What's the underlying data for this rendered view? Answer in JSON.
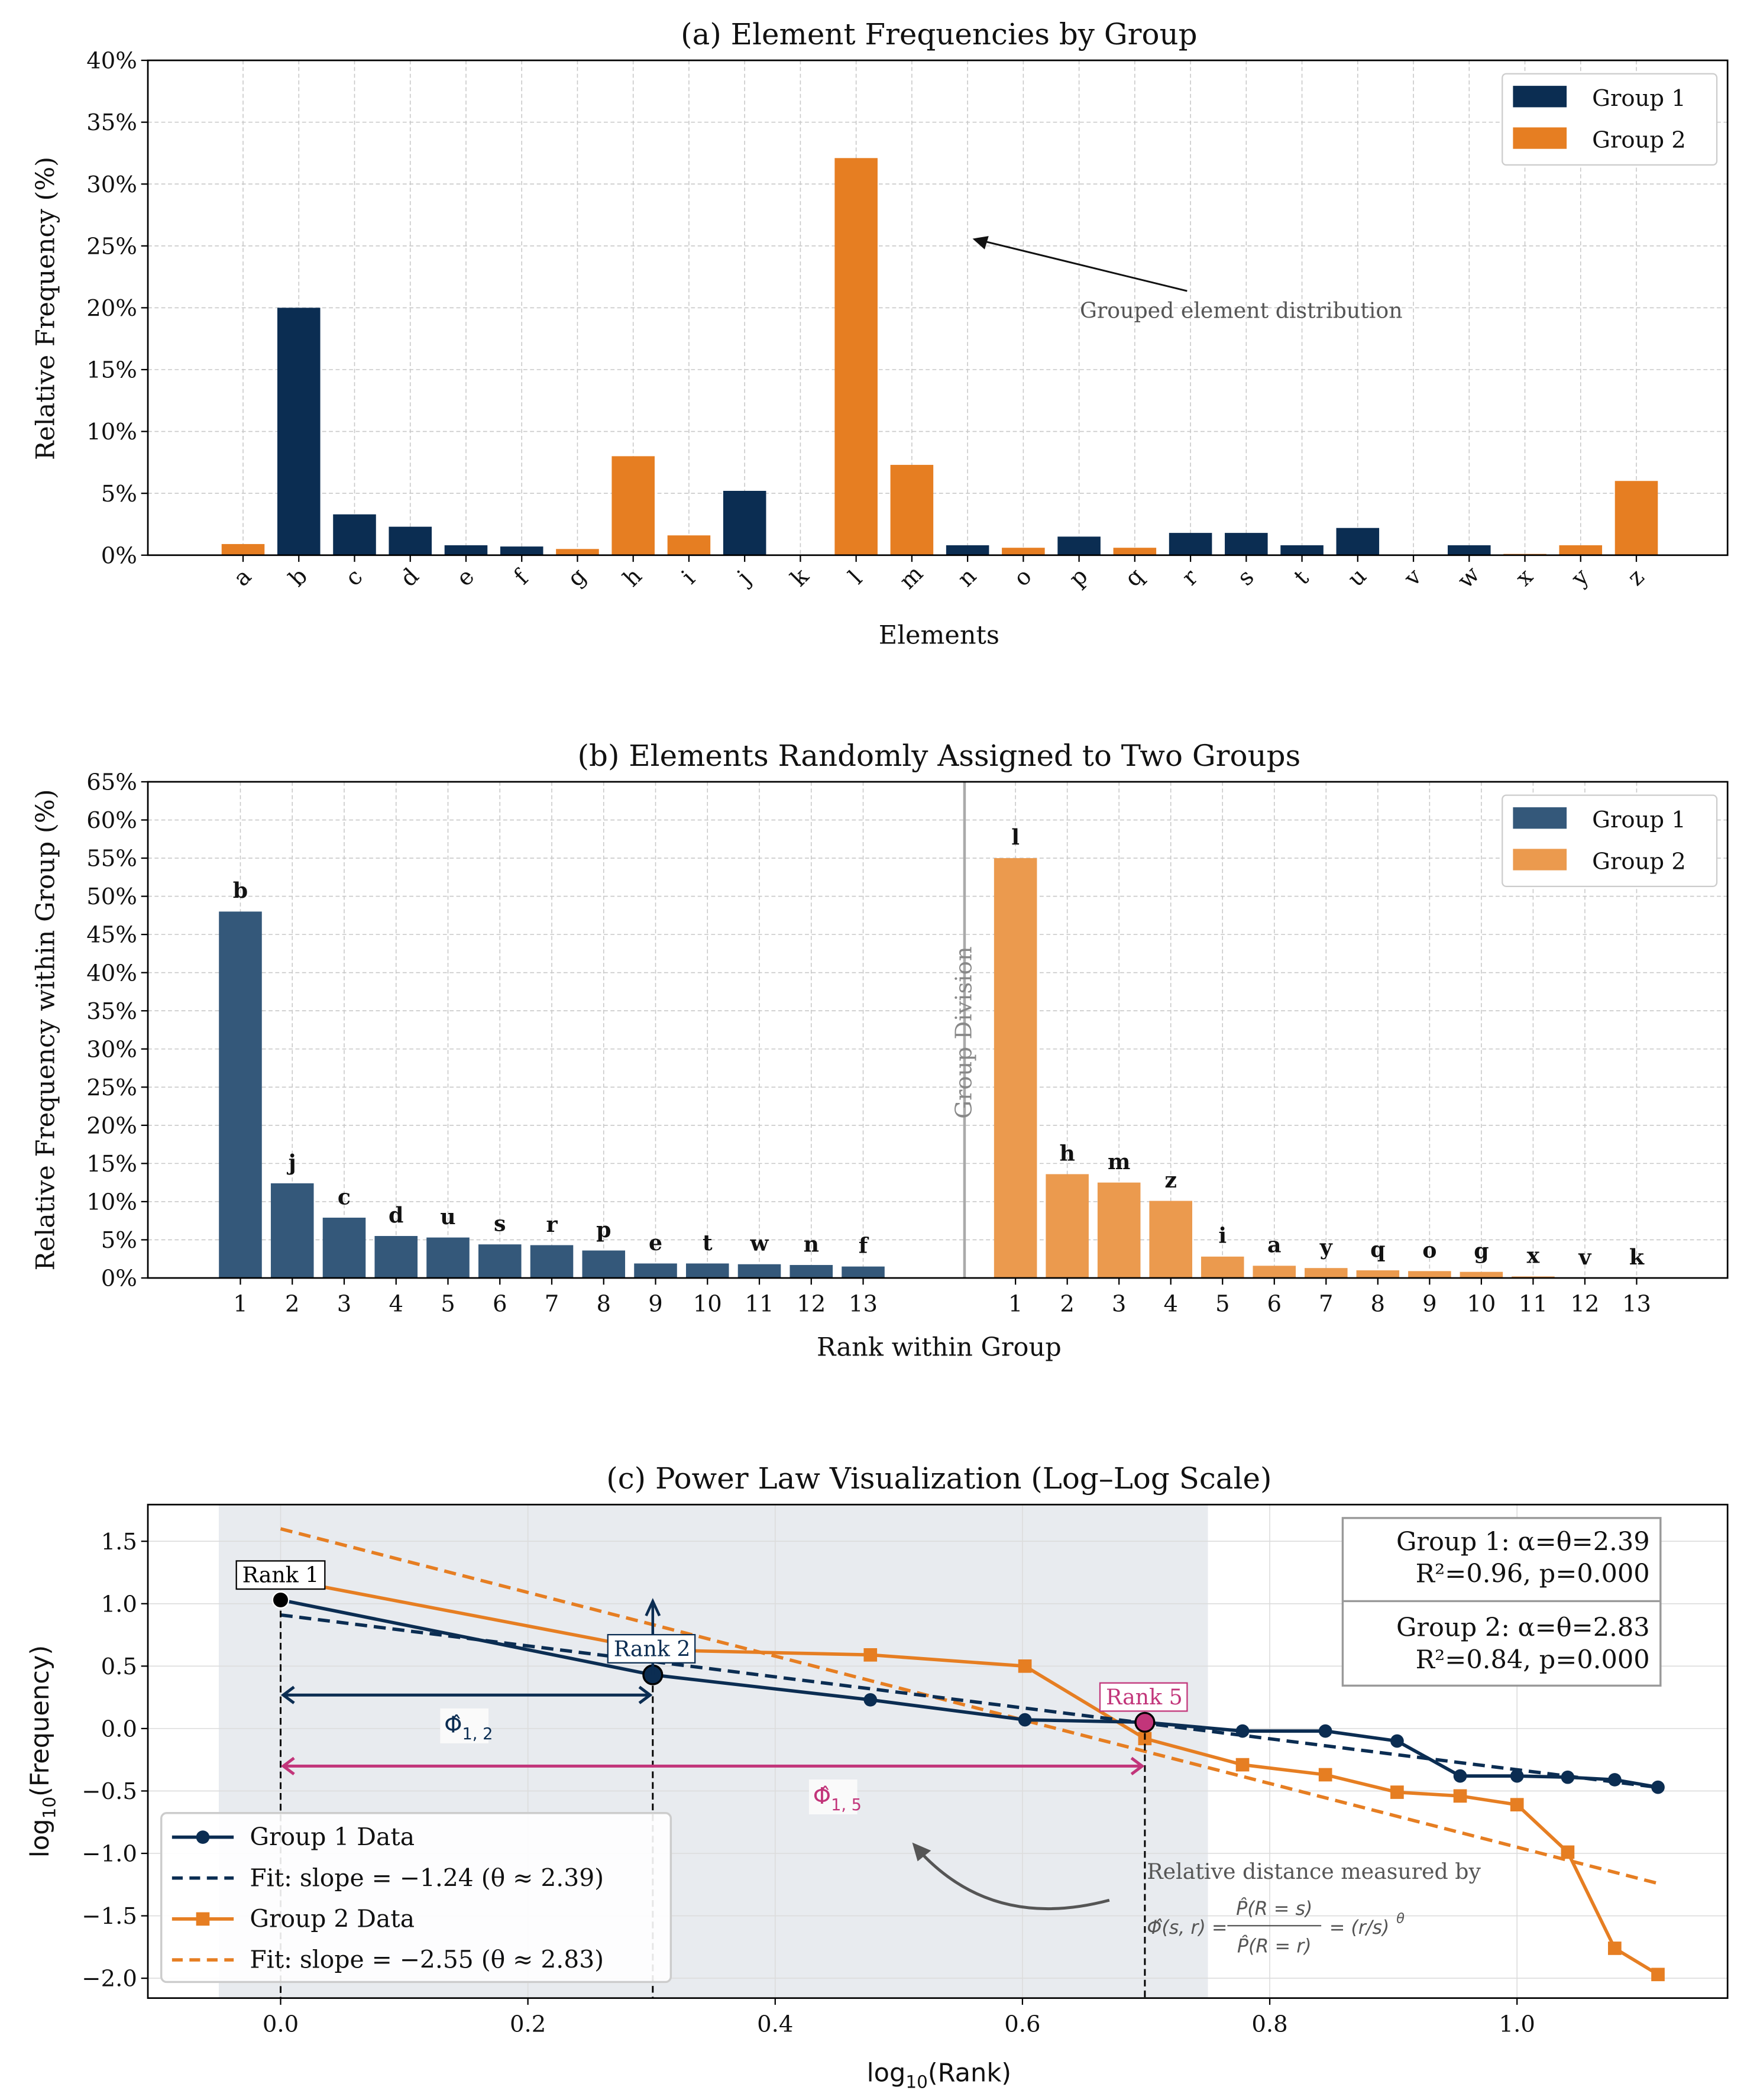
{
  "chart_data": [
    {
      "type": "bar",
      "title": "(a) Element Frequencies by Group",
      "xlabel": "Elements",
      "ylabel": "Relative Frequency (%)",
      "ylim": [
        0,
        40
      ],
      "yticks": [
        "0%",
        "5%",
        "10%",
        "15%",
        "20%",
        "25%",
        "30%",
        "35%",
        "40%"
      ],
      "grid": true,
      "legend": {
        "placement": "top-right",
        "entries": [
          "Group 1",
          "Group 2"
        ]
      },
      "categories": [
        "a",
        "b",
        "c",
        "d",
        "e",
        "f",
        "g",
        "h",
        "i",
        "j",
        "k",
        "l",
        "m",
        "n",
        "o",
        "p",
        "q",
        "r",
        "s",
        "t",
        "u",
        "v",
        "w",
        "x",
        "y",
        "z"
      ],
      "values": [
        0.9,
        20.0,
        3.3,
        2.3,
        0.8,
        0.7,
        0.5,
        8.0,
        1.6,
        5.2,
        0.0,
        32.1,
        7.3,
        0.8,
        0.6,
        1.5,
        0.6,
        1.8,
        1.8,
        0.8,
        2.2,
        0.0,
        0.8,
        0.1,
        0.8,
        6.0
      ],
      "group": [
        2,
        1,
        1,
        1,
        1,
        1,
        2,
        2,
        2,
        1,
        2,
        2,
        2,
        1,
        2,
        1,
        2,
        1,
        1,
        1,
        1,
        2,
        1,
        2,
        2,
        2
      ],
      "annotation": "Grouped element distribution",
      "colors": {
        "group1": "#0b2d52",
        "group2": "#e67e22"
      }
    },
    {
      "type": "bar",
      "title": "(b) Elements Randomly Assigned to Two Groups",
      "xlabel": "Rank within Group",
      "ylabel": "Relative Frequency within Group (%)",
      "ylim": [
        0,
        65
      ],
      "yticks": [
        "0%",
        "5%",
        "10%",
        "15%",
        "20%",
        "25%",
        "30%",
        "35%",
        "40%",
        "45%",
        "50%",
        "55%",
        "60%",
        "65%"
      ],
      "grid": true,
      "legend": {
        "placement": "top-right",
        "entries": [
          "Group 1",
          "Group 2"
        ]
      },
      "division_label": "Group Division",
      "series": [
        {
          "name": "Group 1",
          "ranks": [
            "1",
            "2",
            "3",
            "4",
            "5",
            "6",
            "7",
            "8",
            "9",
            "10",
            "11",
            "12",
            "13"
          ],
          "labels": [
            "b",
            "j",
            "c",
            "d",
            "u",
            "s",
            "r",
            "p",
            "e",
            "t",
            "w",
            "n",
            "f"
          ],
          "values": [
            48.0,
            12.4,
            7.9,
            5.5,
            5.3,
            4.4,
            4.3,
            3.6,
            1.9,
            1.9,
            1.8,
            1.7,
            1.5
          ]
        },
        {
          "name": "Group 2",
          "ranks": [
            "1",
            "2",
            "3",
            "4",
            "5",
            "6",
            "7",
            "8",
            "9",
            "10",
            "11",
            "12",
            "13"
          ],
          "labels": [
            "l",
            "h",
            "m",
            "z",
            "i",
            "a",
            "y",
            "q",
            "o",
            "g",
            "x",
            "v",
            "k"
          ],
          "values": [
            55.0,
            13.6,
            12.5,
            10.1,
            2.8,
            1.6,
            1.3,
            1.0,
            0.9,
            0.8,
            0.2,
            0.0,
            0.0
          ]
        }
      ],
      "colors": {
        "group1": "#34587a",
        "group2": "#eb9a4e"
      }
    },
    {
      "type": "line",
      "title": "(c) Power Law Visualization (Log–Log Scale)",
      "xlabel": "log10(Rank)",
      "ylabel": "log10(Frequency)",
      "xlim": [
        -0.1,
        1.16
      ],
      "ylim": [
        -2.15,
        1.8
      ],
      "xticks": [
        "0.0",
        "0.2",
        "0.4",
        "0.6",
        "0.8",
        "1.0"
      ],
      "yticks": [
        "1.5",
        "1.0",
        "0.5",
        "0.0",
        "−0.5",
        "−1.0",
        "−1.5",
        "−2.0"
      ],
      "grid": true,
      "shaded_region": [
        -0.05,
        0.75
      ],
      "legend": {
        "placement": "bottom-left"
      },
      "series": [
        {
          "name": "Group 1 Data",
          "x": [
            0,
            0.301,
            0.477,
            0.602,
            0.699,
            0.778,
            0.845,
            0.903,
            0.954,
            1.0,
            1.041,
            1.079,
            1.114
          ],
          "y": [
            1.03,
            0.43,
            0.23,
            0.07,
            0.05,
            -0.02,
            -0.02,
            -0.1,
            -0.38,
            -0.38,
            -0.39,
            -0.41,
            -0.47
          ]
        },
        {
          "name": "Fit: slope = −1.24 (θ ≈ 2.39)",
          "intercept": 0.91,
          "slope": -1.24
        },
        {
          "name": "Group 2 Data",
          "x": [
            0,
            0.301,
            0.477,
            0.602,
            0.699,
            0.778,
            0.845,
            0.903,
            0.954,
            1.0,
            1.041,
            1.079,
            1.114
          ],
          "y": [
            1.2,
            0.63,
            0.59,
            0.5,
            -0.08,
            -0.29,
            -0.37,
            -0.51,
            -0.54,
            -0.61,
            -0.99,
            -1.76,
            -1.97
          ]
        },
        {
          "name": "Fit: slope = −2.55 (θ ≈ 2.83)",
          "intercept": 1.6,
          "slope": -2.55
        }
      ],
      "rank_labels": [
        "Rank 1",
        "Rank 2",
        "Rank 5"
      ],
      "phi_labels": [
        "Φ̂",
        "1, 2",
        "1, 5"
      ],
      "stats": [
        "Group 1: α=θ=2.39",
        "R²=0.96, p=0.000",
        "Group 2: α=θ=2.83",
        "R²=0.84, p=0.000"
      ],
      "note": "Relative distance measured by",
      "formula": {
        "lhs": "Φ̂(s, r) =",
        "num": "P̂(R = s)",
        "den": "P̂(R = r)",
        "rhs": "= (r/s)",
        "exp": "θ"
      },
      "colors": {
        "group1": "#0b2d52",
        "group2": "#e67e22",
        "accent": "#c2357a"
      }
    }
  ]
}
